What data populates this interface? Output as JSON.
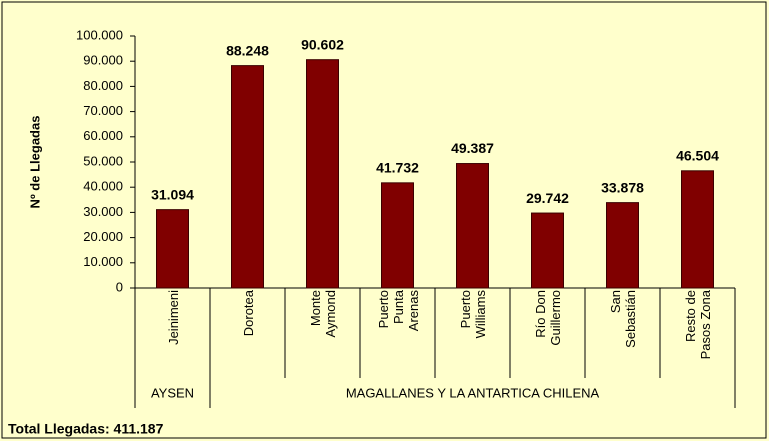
{
  "chart_data": {
    "type": "bar",
    "y_label": "Nº de Llegadas",
    "categories": [
      "Jeinimeni",
      "Dorotea",
      "Monte Aymond",
      "Puerto Punta Arenas",
      "Puerto Williams",
      "Río Don Guillermo",
      "San Sebastián",
      "Resto de Pasos Zona"
    ],
    "groups": [
      {
        "name": "AYSEN",
        "count": 1
      },
      {
        "name": "MAGALLANES Y LA ANTARTICA CHILENA",
        "count": 7
      }
    ],
    "values": [
      31094,
      88248,
      90602,
      41732,
      49387,
      29742,
      33878,
      46504
    ],
    "value_labels": [
      "31.094",
      "88.248",
      "90.602",
      "41.732",
      "49.387",
      "29.742",
      "33.878",
      "46.504"
    ],
    "color": "#800000",
    "ylim": [
      0,
      100000
    ],
    "yticks": [
      0,
      {
        "value": 10000,
        "label": "10.000"
      },
      {
        "value": 20000,
        "label": "20.000"
      },
      {
        "value": 30000,
        "label": "30.000"
      },
      {
        "value": 40000,
        "label": "40.000"
      },
      {
        "value": 50000,
        "label": "50.000"
      },
      {
        "value": 60000,
        "label": "60.000"
      },
      {
        "value": 70000,
        "label": "70.000"
      },
      {
        "value": 80000,
        "label": "80.000"
      },
      {
        "value": 90000,
        "label": "90.000"
      },
      {
        "value": 100000,
        "label": "100.000"
      }
    ],
    "annotation": "Total Llegadas: 411.187"
  }
}
